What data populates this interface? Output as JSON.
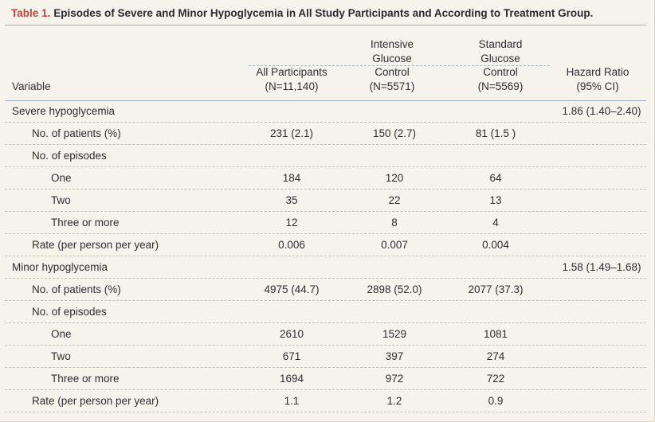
{
  "table": {
    "number": "Table 1.",
    "title": "Episodes of Severe and Minor Hypoglycemia in All Study Participants and According to Treatment Group.",
    "headers": {
      "variable": "Variable",
      "all_participants": [
        "All Participants",
        "(N=11,140)"
      ],
      "intensive": [
        "Intensive",
        "Glucose",
        "Control",
        "(N=5571)"
      ],
      "standard": [
        "Standard",
        "Glucose",
        "Control",
        "(N=5569)"
      ],
      "hazard_ratio": [
        "Hazard Ratio",
        "(95% CI)"
      ]
    },
    "rows": [
      {
        "label": "Severe hypoglycemia",
        "level": 0,
        "all": "",
        "intensive": "",
        "standard": "",
        "hr": "1.86 (1.40–2.40)"
      },
      {
        "label": "No. of patients (%)",
        "level": 1,
        "all": "231 (2.1)",
        "intensive": "150 (2.7)",
        "standard": "81 (1.5 )",
        "hr": ""
      },
      {
        "label": "No. of episodes",
        "level": 1,
        "all": "",
        "intensive": "",
        "standard": "",
        "hr": ""
      },
      {
        "label": "One",
        "level": 2,
        "all": "184",
        "intensive": "120",
        "standard": "64",
        "hr": ""
      },
      {
        "label": "Two",
        "level": 2,
        "all": "35",
        "intensive": "22",
        "standard": "13",
        "hr": ""
      },
      {
        "label": "Three or more",
        "level": 2,
        "all": "12",
        "intensive": "8",
        "standard": "4",
        "hr": ""
      },
      {
        "label": "Rate (per person per year)",
        "level": 1,
        "all": "0.006",
        "intensive": "0.007",
        "standard": "0.004",
        "hr": ""
      },
      {
        "label": "Minor hypoglycemia",
        "level": 0,
        "all": "",
        "intensive": "",
        "standard": "",
        "hr": "1.58 (1.49–1.68)"
      },
      {
        "label": "No. of patients (%)",
        "level": 1,
        "all": "4975 (44.7)",
        "intensive": "2898 (52.0)",
        "standard": "2077 (37.3)",
        "hr": ""
      },
      {
        "label": "No. of episodes",
        "level": 1,
        "all": "",
        "intensive": "",
        "standard": "",
        "hr": ""
      },
      {
        "label": "One",
        "level": 2,
        "all": "2610",
        "intensive": "1529",
        "standard": "1081",
        "hr": ""
      },
      {
        "label": "Two",
        "level": 2,
        "all": "671",
        "intensive": "397",
        "standard": "274",
        "hr": ""
      },
      {
        "label": "Three or more",
        "level": 2,
        "all": "1694",
        "intensive": "972",
        "standard": "722",
        "hr": ""
      },
      {
        "label": "Rate (per person per year)",
        "level": 1,
        "all": "1.1",
        "intensive": "1.2",
        "standard": "0.9",
        "hr": ""
      }
    ]
  },
  "colors": {
    "caption_number": "#c2423f",
    "rule": "#9fb0c3",
    "paper": "#f6f3ec"
  }
}
